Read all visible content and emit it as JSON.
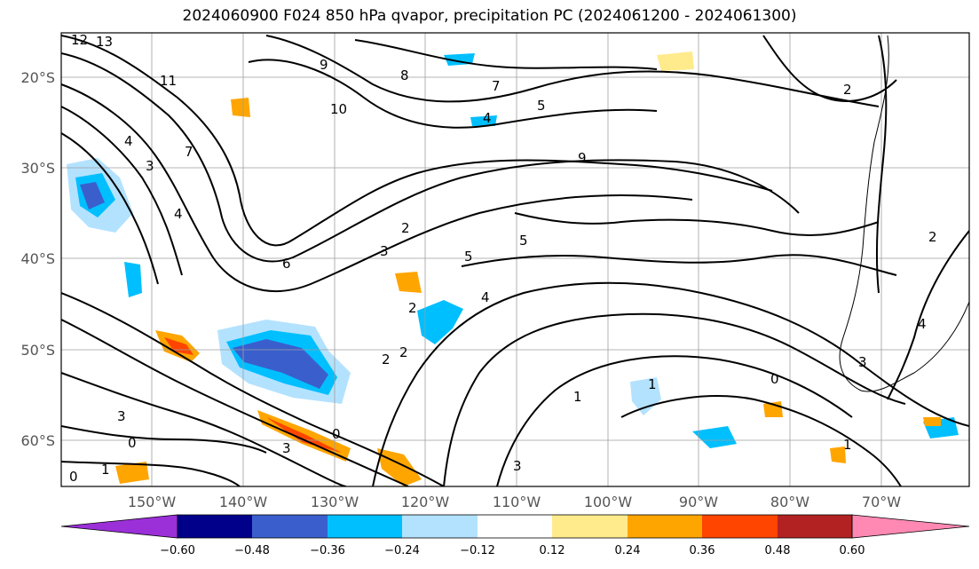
{
  "title": "2024060900 F024 850 hPa qvapor, precipitation PC (2024061200 - 2024061300)",
  "map": {
    "lon_range": [
      -159.5,
      -60.5
    ],
    "lat_range": [
      -65,
      -15
    ],
    "lat_ticks": [
      {
        "value": -20,
        "label": "20°S"
      },
      {
        "value": -30,
        "label": "30°S"
      },
      {
        "value": -40,
        "label": "40°S"
      },
      {
        "value": -50,
        "label": "50°S"
      },
      {
        "value": -60,
        "label": "60°S"
      }
    ],
    "lon_ticks": [
      {
        "value": -150,
        "label": "150°W"
      },
      {
        "value": -140,
        "label": "140°W"
      },
      {
        "value": -130,
        "label": "130°W"
      },
      {
        "value": -120,
        "label": "120°W"
      },
      {
        "value": -110,
        "label": "110°W"
      },
      {
        "value": -100,
        "label": "100°W"
      },
      {
        "value": -90,
        "label": "90°W"
      },
      {
        "value": -80,
        "label": "80°W"
      },
      {
        "value": -70,
        "label": "70°W"
      }
    ],
    "gridlines": true,
    "contour_labels": [
      "13",
      "12",
      "11",
      "10",
      "9",
      "8",
      "7",
      "6",
      "5",
      "4",
      "3",
      "2",
      "1",
      "0"
    ]
  },
  "colorbar": {
    "colors": [
      "#9b30d9",
      "#00008b",
      "#3a5fcd",
      "#00bfff",
      "#b3e2ff",
      "#ffffff",
      "#ffeb8c",
      "#ffa500",
      "#ff4500",
      "#b22222",
      "#ff89b3"
    ],
    "ticks": [
      "-0.60",
      "−0.48",
      "−0.36",
      "−0.24",
      "−0.12",
      "0.12",
      "0.24",
      "0.36",
      "0.48",
      "0.60"
    ],
    "tick_labels": [
      "−0.60",
      "−0.48",
      "−0.36",
      "−0.24",
      "−0.12",
      "0.12",
      "0.24",
      "0.36",
      "0.48",
      "0.60"
    ]
  }
}
